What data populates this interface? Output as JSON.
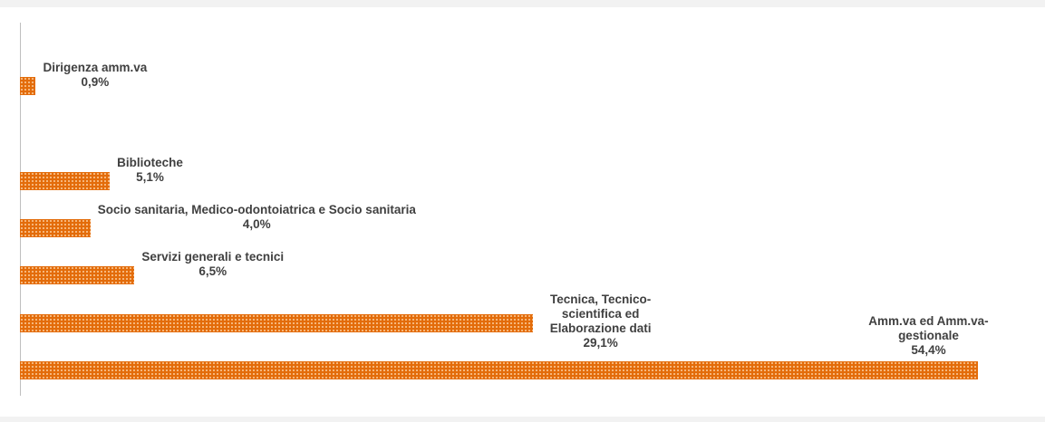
{
  "chart_data": {
    "type": "bar",
    "orientation": "horizontal",
    "categories": [
      "Dirigenza amm.va",
      null,
      "Biblioteche",
      "Socio sanitaria, Medico-odontoiatrica e Socio sanitaria",
      "Servizi generali e tecnici",
      "Tecnica, Tecnico-scientifica ed Elaborazione dati",
      "Amm.va ed Amm.va-gestionale"
    ],
    "values": [
      0.9,
      null,
      5.1,
      4.0,
      6.5,
      29.1,
      54.4
    ],
    "value_labels": [
      "0,9%",
      null,
      "5,1%",
      "4,0%",
      "6,5%",
      "29,1%",
      "54,4%"
    ],
    "color": "#e36c0a",
    "xlim": [
      0,
      57
    ]
  }
}
